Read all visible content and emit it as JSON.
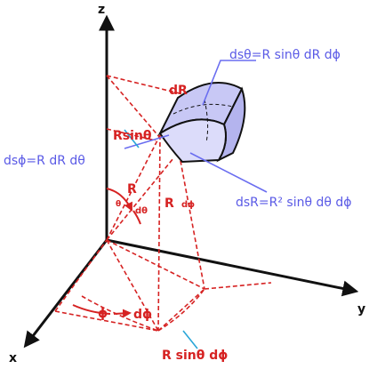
{
  "axes": {
    "z": "z",
    "x": "x",
    "y": "y"
  },
  "labels": {
    "ds_theta": "dsθ=R sinθ dR dϕ",
    "dR": "dR",
    "R_sin_theta": "Rsinθ",
    "ds_phi": "dsϕ=R dR dθ",
    "R": "R",
    "d_theta": "dθ",
    "theta": "θ",
    "R_dphi_prefix": "R",
    "R_dphi_suffix": "dϕ",
    "ds_R": "dsR=R² sinθ dθ dϕ",
    "phi": "ϕ",
    "dphi": "dϕ",
    "R_sin_theta_dphi": "R sinθ dϕ"
  },
  "colors": {
    "axis": "#111111",
    "guide": "#d62222",
    "pointer": "#6a6df0",
    "volume_fill": "#c8c8f5",
    "volume_stroke": "#111111"
  }
}
